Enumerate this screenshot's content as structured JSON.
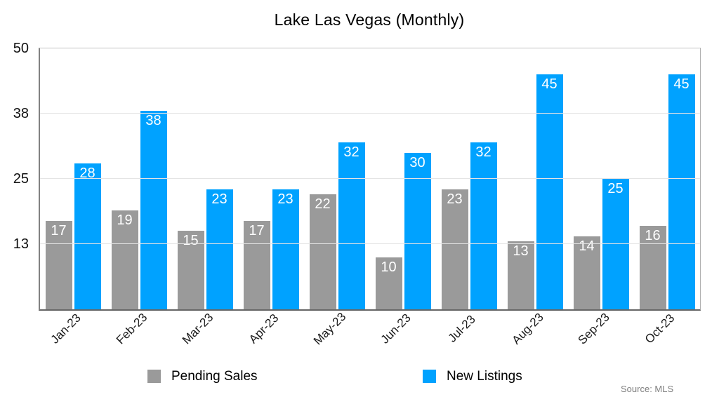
{
  "title": "Lake Las Vegas (Monthly)",
  "source_note": "Source: MLS",
  "colors": {
    "pending_sales": "#9a9a9a",
    "new_listings": "#00a2ff",
    "grid": "#e4e4e4",
    "axis_text": "#111111",
    "value_text": "#ffffff",
    "source_text": "#7f7f7f"
  },
  "legend": {
    "items": [
      {
        "label": "Pending Sales",
        "color": "#9a9a9a"
      },
      {
        "label": "New Listings",
        "color": "#00a2ff"
      }
    ]
  },
  "chart_data": {
    "type": "bar",
    "title": "Lake Las Vegas (Monthly)",
    "categories": [
      "Jan-23",
      "Feb-23",
      "Mar-23",
      "Apr-23",
      "May-23",
      "Jun-23",
      "Jul-23",
      "Aug-23",
      "Sep-23",
      "Oct-23"
    ],
    "series": [
      {
        "name": "Pending Sales",
        "color": "#9a9a9a",
        "values": [
          17,
          19,
          15,
          17,
          22,
          10,
          23,
          13,
          14,
          16
        ]
      },
      {
        "name": "New Listings",
        "color": "#00a2ff",
        "values": [
          28,
          38,
          23,
          23,
          32,
          30,
          32,
          45,
          25,
          45
        ]
      }
    ],
    "xlabel": "",
    "ylabel": "",
    "ylim": [
      0,
      50
    ],
    "yticks": [
      {
        "label": "13",
        "value": 12.5
      },
      {
        "label": "25",
        "value": 25
      },
      {
        "label": "38",
        "value": 37.5
      },
      {
        "label": "50",
        "value": 50
      }
    ],
    "grid": true,
    "bar_value_labels": true,
    "legend_position": "bottom",
    "source": "Source: MLS"
  }
}
